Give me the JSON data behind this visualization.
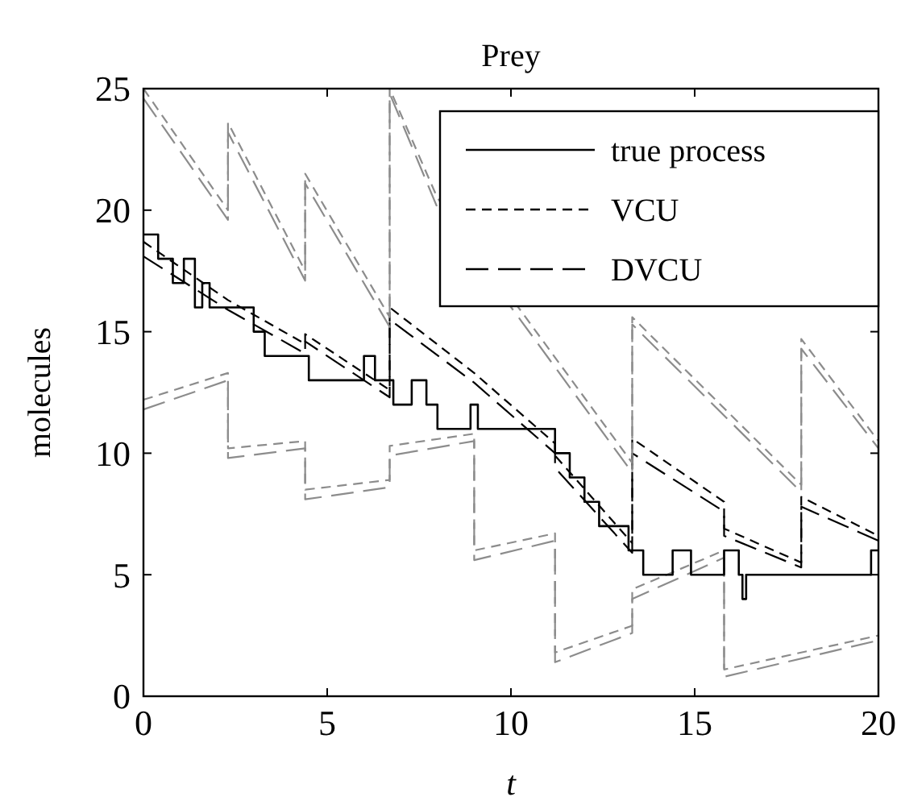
{
  "chart_data": {
    "type": "line",
    "title": "Prey",
    "xlabel": "t",
    "ylabel": "molecules",
    "xlim": [
      0,
      20
    ],
    "ylim": [
      0,
      25
    ],
    "xticks": [
      0,
      5,
      10,
      15,
      20
    ],
    "yticks": [
      0,
      5,
      10,
      15,
      20,
      25
    ],
    "grid": false,
    "legend": "top right",
    "series": [
      {
        "name": "true process",
        "type": "step",
        "color": "#000000",
        "line_style": "solid",
        "x": [
          0,
          0.4,
          0.8,
          1.1,
          1.4,
          1.6,
          1.8,
          3.0,
          3.3,
          4.5,
          6.0,
          6.3,
          6.8,
          7.3,
          7.7,
          8.0,
          8.9,
          9.1,
          11.2,
          11.6,
          12.0,
          12.4,
          13.2,
          13.6,
          14.4,
          14.9,
          15.8,
          16.2,
          16.3,
          16.4,
          19.8,
          20
        ],
        "values": [
          19,
          18,
          17,
          18,
          16,
          17,
          16,
          15,
          14,
          13,
          14,
          13,
          12,
          13,
          12,
          11,
          12,
          11,
          10,
          9,
          8,
          7,
          6,
          5,
          6,
          5,
          6,
          5,
          4,
          5,
          6,
          6
        ]
      },
      {
        "name": "VCU",
        "color": "#000000",
        "line_style": "dashed",
        "x": [
          0,
          2.3,
          4.4,
          4.4,
          6.7,
          6.7,
          9.0,
          11.2,
          11.2,
          13.3,
          13.3,
          15.8,
          15.8,
          17.9,
          17.9,
          20
        ],
        "values": [
          18.7,
          16.3,
          14.5,
          14.9,
          12.6,
          16.0,
          13.3,
          10.4,
          9.9,
          6.3,
          10.6,
          8.0,
          6.9,
          5.5,
          8.2,
          6.6
        ]
      },
      {
        "name": "DVCU",
        "color": "#000000",
        "line_style": "dashed-long",
        "x": [
          0,
          2.3,
          4.4,
          4.4,
          6.7,
          6.7,
          9.0,
          11.2,
          11.2,
          13.3,
          13.3,
          15.8,
          15.8,
          17.9,
          17.9,
          20
        ],
        "values": [
          18.1,
          15.9,
          14.1,
          14.6,
          12.3,
          15.5,
          12.9,
          10.0,
          9.4,
          5.9,
          10.0,
          7.6,
          6.6,
          5.3,
          7.8,
          6.4
        ]
      },
      {
        "color": "#8c8c8c",
        "line_style": "dashed",
        "x": [
          0,
          2.3,
          2.3,
          4.4,
          4.4,
          6.7,
          6.7,
          8.0,
          10.3,
          13.3,
          13.3,
          17.9,
          17.9,
          20
        ],
        "values": [
          25,
          20.0,
          23.6,
          17.5,
          21.5,
          15.6,
          25,
          20.5,
          15.8,
          9.6,
          15.6,
          8.7,
          14.7,
          10.5
        ]
      },
      {
        "color": "#8c8c8c",
        "line_style": "dashed-long",
        "x": [
          0,
          2.3,
          2.3,
          4.4,
          4.4,
          6.7,
          6.7,
          8.0,
          10.3,
          13.3,
          13.3,
          17.9,
          17.9,
          20
        ],
        "values": [
          24.6,
          19.6,
          23.2,
          17.1,
          21.1,
          15.2,
          24.8,
          20.1,
          15.4,
          9.2,
          15.3,
          8.4,
          14.3,
          10.2
        ]
      },
      {
        "color": "#8c8c8c",
        "line_style": "dashed",
        "x": [
          0,
          2.3,
          2.3,
          4.4,
          4.4,
          6.7,
          6.7,
          9.0,
          9.0,
          11.2,
          11.2,
          13.3,
          13.3,
          15.8,
          15.8,
          20
        ],
        "values": [
          12.2,
          13.3,
          10.2,
          10.5,
          8.5,
          8.9,
          10.3,
          10.8,
          6.0,
          6.7,
          1.8,
          2.9,
          4.4,
          6.0,
          1.1,
          2.5
        ]
      },
      {
        "color": "#8c8c8c",
        "line_style": "dashed-long",
        "x": [
          0,
          2.3,
          2.3,
          4.4,
          4.4,
          6.7,
          6.7,
          9.0,
          9.0,
          11.2,
          11.2,
          13.3,
          13.3,
          15.8,
          15.8,
          20
        ],
        "values": [
          11.8,
          13.0,
          9.8,
          10.2,
          8.1,
          8.6,
          9.9,
          10.5,
          5.6,
          6.4,
          1.4,
          2.6,
          4.0,
          5.7,
          0.8,
          2.3
        ]
      }
    ]
  }
}
